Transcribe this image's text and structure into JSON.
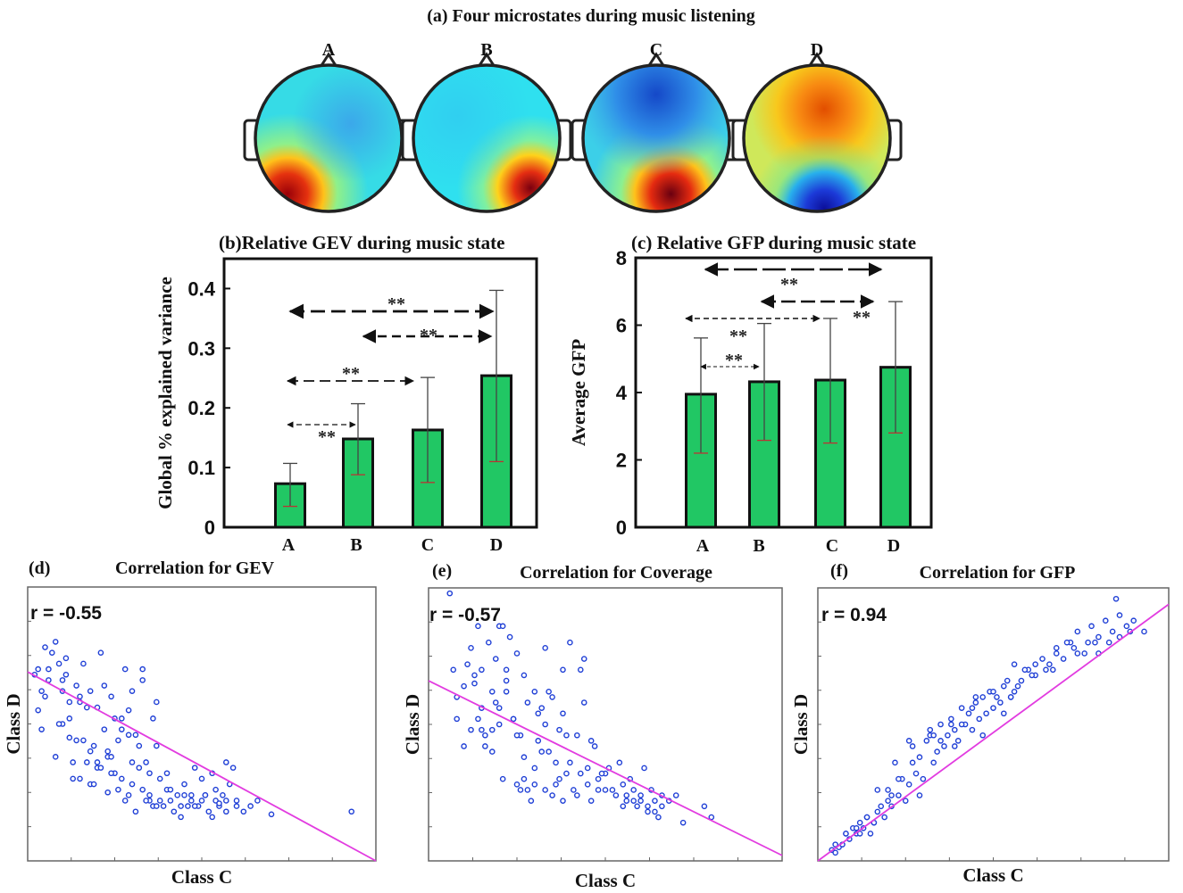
{
  "figure_title": "(a) Four microstates during music listening",
  "microstates": [
    {
      "label": "A",
      "colors": {
        "bg": "#36dbe6",
        "hot": "#b8000a"
      }
    },
    {
      "label": "B",
      "colors": {
        "bg": "#2fe0ef",
        "hot": "#9c0010"
      }
    },
    {
      "label": "C",
      "colors": {
        "bg": "#3ccfe8",
        "hot": "#7a0010"
      }
    },
    {
      "label": "D",
      "colors": {
        "bg": "#f6c11c",
        "hot": "#e25a00"
      }
    }
  ],
  "panel_b": {
    "panel_label": "(b)",
    "title": "Relative GEV during music state",
    "significance": [
      "**",
      "**",
      "**",
      "**"
    ]
  },
  "panel_c": {
    "panel_label": "(c)",
    "title": "Relative GFP during music state",
    "significance": [
      "**",
      "**",
      "**",
      "**"
    ]
  },
  "panel_d": {
    "panel_label": "(d)",
    "title": "Correlation for GEV",
    "r_label": "r = -0.55"
  },
  "panel_e": {
    "panel_label": "(e)",
    "title": "Correlation for Coverage",
    "r_label": "r = -0.57"
  },
  "panel_f": {
    "panel_label": "(f)",
    "title": "Correlation for GFP",
    "r_label": "r = 0.94"
  },
  "colors": {
    "bar": "#21c764",
    "scatter": "#1f3fd6",
    "fit": "#e23ce0"
  },
  "chart_data": [
    {
      "type": "bar",
      "title": "Relative GEV during music state",
      "categories": [
        "A",
        "B",
        "C",
        "D"
      ],
      "values": [
        0.073,
        0.148,
        0.163,
        0.254
      ],
      "error_upper": [
        0.107,
        0.207,
        0.251,
        0.397
      ],
      "error_lower": [
        0.035,
        0.088,
        0.075,
        0.11
      ],
      "xlabel": "",
      "ylabel": "Global % explained variance",
      "ylim": [
        0,
        0.45
      ],
      "yticks": [
        0,
        0.1,
        0.2,
        0.3,
        0.4
      ],
      "ytick_labels": [
        "0",
        "0.1",
        "0.2",
        "0.3",
        "0.4"
      ],
      "annotations": [
        {
          "from": "A",
          "to": "D",
          "text": "**"
        },
        {
          "from": "B",
          "to": "D",
          "text": "**"
        },
        {
          "from": "A",
          "to": "C",
          "text": "**"
        },
        {
          "from": "A",
          "to": "B",
          "text": "**"
        }
      ]
    },
    {
      "type": "bar",
      "title": "Relative GFP during music state",
      "categories": [
        "A",
        "B",
        "C",
        "D"
      ],
      "values": [
        3.95,
        4.32,
        4.37,
        4.75
      ],
      "error_upper": [
        5.62,
        6.05,
        6.2,
        6.7
      ],
      "error_lower": [
        2.2,
        2.58,
        2.5,
        2.8
      ],
      "xlabel": "",
      "ylabel": "Average GFP",
      "ylim": [
        0,
        8
      ],
      "yticks": [
        0,
        2,
        4,
        6,
        8
      ],
      "ytick_labels": [
        "0",
        "2",
        "4",
        "6",
        "8"
      ],
      "annotations": [
        {
          "from": "A",
          "to": "D",
          "text": "**"
        },
        {
          "from": "B",
          "to": "D",
          "text": "**"
        },
        {
          "from": "A",
          "to": "C",
          "text": "**"
        },
        {
          "from": "A",
          "to": "B",
          "text": "**"
        }
      ]
    },
    {
      "type": "scatter",
      "title": "Correlation for GEV",
      "xlabel": "Class C",
      "ylabel": "Class D",
      "r": -0.55,
      "xlim": [
        0,
        1
      ],
      "ylim": [
        0,
        1
      ],
      "fit": {
        "x": [
          0,
          1
        ],
        "y": [
          0.69,
          0.0
        ]
      },
      "x": [
        0.02,
        0.03,
        0.04,
        0.05,
        0.05,
        0.06,
        0.07,
        0.08,
        0.09,
        0.1,
        0.1,
        0.11,
        0.12,
        0.12,
        0.13,
        0.14,
        0.15,
        0.15,
        0.16,
        0.17,
        0.18,
        0.18,
        0.19,
        0.2,
        0.2,
        0.21,
        0.22,
        0.23,
        0.23,
        0.24,
        0.25,
        0.25,
        0.26,
        0.27,
        0.28,
        0.28,
        0.29,
        0.3,
        0.3,
        0.31,
        0.32,
        0.33,
        0.33,
        0.34,
        0.35,
        0.36,
        0.36,
        0.37,
        0.38,
        0.39,
        0.4,
        0.41,
        0.42,
        0.43,
        0.44,
        0.45,
        0.46,
        0.47,
        0.48,
        0.49,
        0.5,
        0.51,
        0.52,
        0.53,
        0.54,
        0.55,
        0.56,
        0.57,
        0.58,
        0.6,
        0.62,
        0.64,
        0.66,
        0.7,
        0.93,
        0.03,
        0.06,
        0.09,
        0.11,
        0.14,
        0.17,
        0.19,
        0.22,
        0.24,
        0.27,
        0.29,
        0.31,
        0.33,
        0.35,
        0.37,
        0.04,
        0.08,
        0.1,
        0.13,
        0.16,
        0.2,
        0.23,
        0.26,
        0.29,
        0.32,
        0.35,
        0.38,
        0.4,
        0.44,
        0.47,
        0.5,
        0.53,
        0.55,
        0.57,
        0.59,
        0.12,
        0.15,
        0.18,
        0.21,
        0.24,
        0.27,
        0.3,
        0.34,
        0.37,
        0.41,
        0.45,
        0.48,
        0.51,
        0.54,
        0.57,
        0.6
      ],
      "y": [
        0.68,
        0.55,
        0.62,
        0.6,
        0.78,
        0.7,
        0.76,
        0.8,
        0.72,
        0.62,
        0.5,
        0.68,
        0.58,
        0.45,
        0.36,
        0.64,
        0.58,
        0.3,
        0.72,
        0.36,
        0.62,
        0.28,
        0.42,
        0.34,
        0.56,
        0.76,
        0.48,
        0.38,
        0.25,
        0.6,
        0.32,
        0.52,
        0.44,
        0.3,
        0.7,
        0.22,
        0.55,
        0.28,
        0.62,
        0.18,
        0.42,
        0.26,
        0.66,
        0.36,
        0.24,
        0.52,
        0.2,
        0.58,
        0.3,
        0.2,
        0.32,
        0.22,
        0.18,
        0.24,
        0.16,
        0.28,
        0.2,
        0.22,
        0.34,
        0.2,
        0.22,
        0.24,
        0.18,
        0.32,
        0.22,
        0.2,
        0.24,
        0.18,
        0.28,
        0.22,
        0.18,
        0.2,
        0.22,
        0.17,
        0.18,
        0.7,
        0.66,
        0.5,
        0.74,
        0.44,
        0.56,
        0.28,
        0.64,
        0.38,
        0.52,
        0.24,
        0.46,
        0.7,
        0.32,
        0.42,
        0.48,
        0.38,
        0.66,
        0.3,
        0.44,
        0.36,
        0.4,
        0.26,
        0.46,
        0.34,
        0.22,
        0.22,
        0.26,
        0.2,
        0.24,
        0.3,
        0.16,
        0.21,
        0.36,
        0.34,
        0.52,
        0.6,
        0.4,
        0.34,
        0.32,
        0.48,
        0.36,
        0.22,
        0.2,
        0.26,
        0.24,
        0.2,
        0.24,
        0.26,
        0.22,
        0.2
      ]
    },
    {
      "type": "scatter",
      "title": "Correlation for Coverage",
      "xlabel": "Class C",
      "ylabel": "Class D",
      "r": -0.57,
      "xlim": [
        0,
        1
      ],
      "ylim": [
        0,
        1
      ],
      "fit": {
        "x": [
          0,
          1
        ],
        "y": [
          0.66,
          0.02
        ]
      },
      "x": [
        0.06,
        0.08,
        0.08,
        0.1,
        0.12,
        0.13,
        0.14,
        0.15,
        0.15,
        0.16,
        0.17,
        0.18,
        0.18,
        0.19,
        0.2,
        0.2,
        0.21,
        0.22,
        0.22,
        0.23,
        0.24,
        0.25,
        0.25,
        0.26,
        0.27,
        0.27,
        0.28,
        0.29,
        0.3,
        0.3,
        0.31,
        0.32,
        0.33,
        0.33,
        0.34,
        0.35,
        0.35,
        0.36,
        0.37,
        0.38,
        0.38,
        0.39,
        0.4,
        0.41,
        0.42,
        0.43,
        0.44,
        0.45,
        0.46,
        0.47,
        0.48,
        0.5,
        0.52,
        0.53,
        0.54,
        0.55,
        0.56,
        0.57,
        0.58,
        0.59,
        0.6,
        0.61,
        0.62,
        0.63,
        0.64,
        0.65,
        0.66,
        0.7,
        0.72,
        0.78,
        0.8,
        0.1,
        0.13,
        0.16,
        0.19,
        0.22,
        0.25,
        0.28,
        0.31,
        0.34,
        0.37,
        0.4,
        0.43,
        0.46,
        0.49,
        0.12,
        0.15,
        0.18,
        0.21,
        0.24,
        0.27,
        0.3,
        0.33,
        0.36,
        0.39,
        0.42,
        0.45,
        0.48,
        0.51,
        0.56,
        0.6,
        0.64,
        0.68,
        0.07,
        0.11,
        0.14,
        0.2,
        0.26,
        0.32,
        0.38,
        0.44,
        0.5,
        0.55,
        0.58,
        0.62,
        0.66
      ],
      "y": [
        0.98,
        0.6,
        0.52,
        0.42,
        0.78,
        0.65,
        0.86,
        0.48,
        0.7,
        0.42,
        0.8,
        0.62,
        0.4,
        0.74,
        0.86,
        0.5,
        0.3,
        0.66,
        0.62,
        0.82,
        0.52,
        0.28,
        0.76,
        0.46,
        0.68,
        0.3,
        0.58,
        0.22,
        0.62,
        0.34,
        0.44,
        0.56,
        0.26,
        0.78,
        0.4,
        0.24,
        0.6,
        0.36,
        0.3,
        0.7,
        0.22,
        0.32,
        0.8,
        0.26,
        0.46,
        0.32,
        0.74,
        0.28,
        0.22,
        0.42,
        0.3,
        0.32,
        0.26,
        0.24,
        0.36,
        0.2,
        0.24,
        0.3,
        0.26,
        0.2,
        0.22,
        0.34,
        0.2,
        0.26,
        0.22,
        0.16,
        0.2,
        0.24,
        0.14,
        0.2,
        0.16,
        0.64,
        0.68,
        0.46,
        0.58,
        0.7,
        0.46,
        0.26,
        0.54,
        0.62,
        0.48,
        0.36,
        0.7,
        0.44,
        0.32,
        0.48,
        0.56,
        0.48,
        0.86,
        0.52,
        0.38,
        0.28,
        0.5,
        0.28,
        0.46,
        0.24,
        0.34,
        0.26,
        0.34,
        0.22,
        0.24,
        0.18,
        0.22,
        0.7,
        0.72,
        0.52,
        0.56,
        0.26,
        0.4,
        0.54,
        0.58,
        0.26,
        0.28,
        0.22,
        0.18,
        0.24
      ]
    },
    {
      "type": "scatter",
      "title": "Correlation for GFP",
      "xlabel": "Class C",
      "ylabel": "Class D",
      "r": 0.94,
      "xlim": [
        0,
        1
      ],
      "ylim": [
        0,
        1
      ],
      "fit": {
        "x": [
          0,
          1
        ],
        "y": [
          0.0,
          0.94
        ]
      },
      "x": [
        0.04,
        0.05,
        0.06,
        0.08,
        0.09,
        0.1,
        0.11,
        0.12,
        0.13,
        0.14,
        0.15,
        0.16,
        0.17,
        0.18,
        0.19,
        0.2,
        0.21,
        0.22,
        0.23,
        0.24,
        0.25,
        0.26,
        0.27,
        0.28,
        0.29,
        0.3,
        0.31,
        0.32,
        0.33,
        0.34,
        0.35,
        0.36,
        0.37,
        0.38,
        0.39,
        0.4,
        0.41,
        0.42,
        0.43,
        0.44,
        0.45,
        0.46,
        0.47,
        0.48,
        0.49,
        0.5,
        0.51,
        0.52,
        0.53,
        0.54,
        0.55,
        0.56,
        0.57,
        0.58,
        0.6,
        0.62,
        0.64,
        0.66,
        0.68,
        0.7,
        0.72,
        0.74,
        0.76,
        0.78,
        0.8,
        0.82,
        0.84,
        0.86,
        0.88,
        0.9,
        0.93,
        0.05,
        0.08,
        0.11,
        0.14,
        0.17,
        0.2,
        0.23,
        0.26,
        0.29,
        0.32,
        0.35,
        0.38,
        0.41,
        0.44,
        0.47,
        0.5,
        0.53,
        0.56,
        0.59,
        0.62,
        0.65,
        0.68,
        0.71,
        0.74,
        0.77,
        0.8,
        0.83,
        0.86,
        0.89,
        0.07,
        0.12,
        0.16,
        0.21,
        0.27,
        0.33,
        0.39,
        0.45,
        0.55,
        0.61,
        0.67,
        0.73,
        0.79,
        0.85
      ],
      "y": [
        0.04,
        0.03,
        0.05,
        0.1,
        0.08,
        0.12,
        0.1,
        0.14,
        0.12,
        0.16,
        0.1,
        0.14,
        0.18,
        0.2,
        0.16,
        0.26,
        0.2,
        0.36,
        0.24,
        0.3,
        0.22,
        0.28,
        0.42,
        0.32,
        0.38,
        0.3,
        0.44,
        0.46,
        0.36,
        0.4,
        0.5,
        0.42,
        0.46,
        0.52,
        0.48,
        0.44,
        0.56,
        0.5,
        0.54,
        0.48,
        0.58,
        0.52,
        0.6,
        0.54,
        0.62,
        0.56,
        0.6,
        0.58,
        0.64,
        0.66,
        0.6,
        0.72,
        0.64,
        0.66,
        0.7,
        0.68,
        0.74,
        0.72,
        0.76,
        0.74,
        0.8,
        0.84,
        0.76,
        0.86,
        0.82,
        0.88,
        0.84,
        0.82,
        0.86,
        0.88,
        0.84,
        0.06,
        0.1,
        0.12,
        0.16,
        0.26,
        0.22,
        0.3,
        0.44,
        0.24,
        0.48,
        0.44,
        0.5,
        0.5,
        0.56,
        0.46,
        0.62,
        0.54,
        0.62,
        0.7,
        0.72,
        0.7,
        0.78,
        0.8,
        0.76,
        0.8,
        0.76,
        0.8,
        0.9,
        0.84,
        0.06,
        0.1,
        0.14,
        0.24,
        0.36,
        0.46,
        0.42,
        0.6,
        0.6,
        0.68,
        0.7,
        0.78,
        0.8,
        0.96
      ]
    }
  ]
}
